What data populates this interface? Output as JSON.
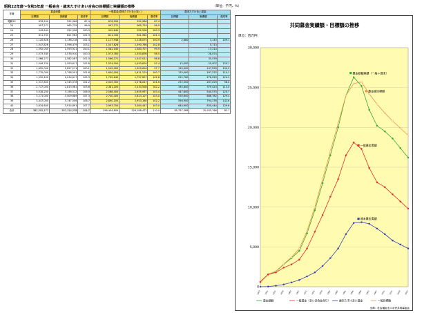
{
  "header": {
    "title": "昭和22年度～令和5年度 一般会合・歳末たすけあい合会の目標額と実績額の推移",
    "unit": "（単位：千円、%）"
  },
  "table": {
    "col_year": "年度",
    "groups": [
      "募金総額",
      "一般募金(歳末たすけあい除く)",
      "歳末たすけあい募金"
    ],
    "subheaders": [
      "目標額",
      "実績額",
      "達成率"
    ],
    "rows": [
      [
        "昭和22",
        "676,200",
        "592,966",
        "87.4",
        "676,200",
        "592,966",
        "87.4",
        "",
        "",
        ""
      ],
      [
        "23",
        "997,271",
        "965,729",
        "96.9",
        "997,271",
        "965,729",
        "96.9",
        "",
        "",
        ""
      ],
      [
        "24",
        "949,649",
        "952,596",
        "100.3",
        "949,649",
        "952,596",
        "100.3",
        "",
        "",
        ""
      ],
      [
        "25",
        "811,700",
        "821,962",
        "101.3",
        "811,700",
        "821,962",
        "101.3",
        "",
        "",
        ""
      ],
      [
        "26",
        "1,120,826",
        "1,136,218",
        "101.4",
        "1,117,946",
        "1,128,075",
        "100.9",
        "2,880",
        "3,143",
        "109.1"
      ],
      [
        "27",
        "1,547,826",
        "1,596,479",
        "103.1",
        "1,547,826",
        "1,590,766",
        "102.8",
        "",
        "5,713",
        ""
      ],
      [
        "28",
        "1,592,045",
        "1,593,921",
        "100.1",
        "1,582,045",
        "1,580,707",
        "99.9",
        "",
        "13,214",
        ""
      ],
      [
        "29",
        "1,573,785",
        "1,578,910",
        "100.3",
        "1,573,785",
        "1,550,836",
        "98.5",
        "",
        "28,074",
        ""
      ],
      [
        "30",
        "1,566,271",
        "1,582,587",
        "101.0",
        "1,566,271",
        "1,547,011",
        "98.8",
        "",
        "35,576",
        ""
      ],
      [
        "31",
        "1,549,700",
        "1,593,617",
        "102.8",
        "1,534,200",
        "1,493,610",
        "97.4",
        "15,500",
        "20,007",
        "129.1"
      ],
      [
        "32",
        "1,655,000",
        "1,657,211",
        "100.1",
        "1,545,000",
        "1,509,616",
        "97.7",
        "110,000",
        "147,595",
        "134.2"
      ],
      [
        "33",
        "1,770,000",
        "1,798,501",
        "101.6",
        "1,600,000",
        "1,611,279",
        "100.7",
        "170,000",
        "187,222",
        "110.1"
      ],
      [
        "34",
        "1,932,400",
        "2,034,617",
        "105.3",
        "1,709,640",
        "1,757,697",
        "102.8",
        "222,760",
        "276,920",
        "124.3"
      ],
      [
        "35",
        "2,317,800",
        "2,345,076",
        "101.2",
        "2,045,300",
        "2,078,047",
        "101.6",
        "272,500",
        "267,029",
        "98.0"
      ],
      [
        "36",
        "2,717,000",
        "2,813,981",
        "103.6",
        "2,381,200",
        "2,434,558",
        "102.2",
        "335,800",
        "379,423",
        "113.0"
      ],
      [
        "37",
        "3,016,200",
        "3,196,512",
        "106.0",
        "2,568,400",
        "2,655,937",
        "103.4",
        "447,800",
        "540,575",
        "120.7"
      ],
      [
        "38",
        "3,271,000",
        "3,509,889",
        "107.3",
        "2,740,400",
        "2,823,107",
        "103.0",
        "530,600",
        "686,782",
        "129.4"
      ],
      [
        "39",
        "3,447,000",
        "3,747,556",
        "108.7",
        "2,890,100",
        "2,953,180",
        "102.2",
        "556,900",
        "794,376",
        "142.6"
      ],
      [
        "40",
        "3,634,600",
        "3,914,891",
        "107.7",
        "2,993,700",
        "3,084,447",
        "103.0",
        "640,900",
        "830,444",
        "129.6"
      ]
    ],
    "total_row": [
      "合計",
      "382,202,177",
      "397,124,238",
      "104.7",
      "296,404,809",
      "326,188,472",
      "110.0",
      "85,797,368",
      "70,935,766",
      "82.7"
    ]
  },
  "chart": {
    "title": "共同募金実績額・目標額の推移",
    "unit_label": "単位：百万円",
    "credit": "出典：社会福祉法人中央共同募金会",
    "labels": [
      "募金総額",
      "一般募金（あい沢合金含む）",
      "歳末たすけあい募金",
      "一般目標額"
    ]
  },
  "chart_data": {
    "type": "line",
    "title": "共同募金実績額・目標額の推移",
    "ylabel": "単位：百万円",
    "ylim": [
      0,
      30000
    ],
    "yticks": [
      0,
      5000,
      10000,
      15000,
      20000,
      25000,
      30000
    ],
    "x": [
      1947,
      1951,
      1955,
      1959,
      1963,
      1967,
      1971,
      1975,
      1979,
      1983,
      1987,
      1991,
      1995,
      1999,
      2003,
      2007,
      2011,
      2015,
      2019,
      2023
    ],
    "series": [
      {
        "name": "募金総額実績（一般＋歳末）",
        "color": "#3aa832",
        "values": [
          600,
          1550,
          1900,
          2800,
          3600,
          4500,
          6700,
          9600,
          13000,
          16500,
          20000,
          24000,
          26300,
          25200,
          22200,
          20200,
          19500,
          18600,
          17400,
          16200
        ]
      },
      {
        "name": "募金総額目標",
        "color": "#f29046",
        "values": [
          680,
          1570,
          1950,
          2850,
          3700,
          4800,
          7000,
          10000,
          13500,
          17000,
          20500,
          24000,
          25500,
          25700,
          24200,
          22900,
          21800,
          20800,
          19900,
          19000
        ]
      },
      {
        "name": "一般募金実績",
        "color": "#e03030",
        "values": [
          600,
          1540,
          1800,
          2400,
          2800,
          3400,
          4800,
          6900,
          9000,
          11300,
          13500,
          16500,
          18100,
          17300,
          14900,
          13100,
          12500,
          11600,
          10700,
          9800
        ]
      },
      {
        "name": "歳末募金実績",
        "color": "#3c44b0",
        "values": [
          0,
          20,
          130,
          280,
          540,
          850,
          1300,
          1800,
          2600,
          3600,
          4800,
          6600,
          8000,
          8100,
          7900,
          7300,
          6600,
          5800,
          5300,
          4800
        ]
      }
    ],
    "annotations": [
      "募金総額実績（一般＋歳末）",
      "募金総目標額",
      "一般募金実績",
      "歳末募金実績"
    ]
  }
}
